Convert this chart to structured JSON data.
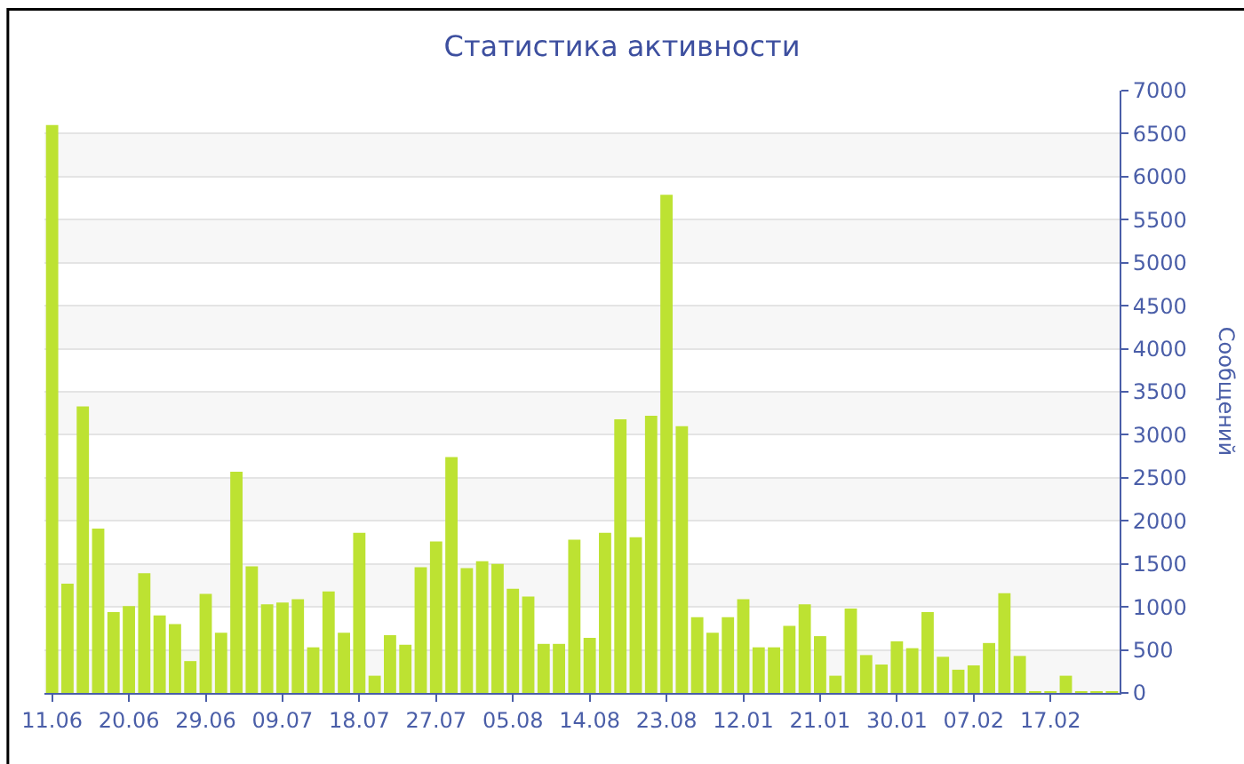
{
  "chart_data": {
    "type": "bar",
    "title": "Статистика активности",
    "ylabel": "Сообщений",
    "categories": [
      "11.06",
      null,
      null,
      null,
      null,
      "20.06",
      null,
      null,
      null,
      null,
      "29.06",
      null,
      null,
      null,
      null,
      "09.07",
      null,
      null,
      null,
      null,
      "18.07",
      null,
      null,
      null,
      null,
      "27.07",
      null,
      null,
      null,
      null,
      "05.08",
      null,
      null,
      null,
      null,
      "14.08",
      null,
      null,
      null,
      null,
      "23.08",
      null,
      null,
      null,
      null,
      "12.01",
      null,
      null,
      null,
      null,
      "21.01",
      null,
      null,
      null,
      null,
      "30.01",
      null,
      null,
      null,
      null,
      "07.02",
      null,
      null,
      null,
      null,
      "17.02",
      null,
      null,
      null,
      null
    ],
    "values": [
      6600,
      1270,
      3330,
      1910,
      940,
      1010,
      1390,
      900,
      800,
      370,
      1150,
      700,
      2570,
      1470,
      1030,
      1050,
      1090,
      530,
      1180,
      700,
      1860,
      200,
      670,
      560,
      1460,
      1760,
      2740,
      1450,
      1530,
      1500,
      1210,
      1120,
      570,
      570,
      1780,
      640,
      1860,
      3180,
      1810,
      3220,
      5790,
      3100,
      880,
      700,
      880,
      1090,
      530,
      530,
      780,
      1030,
      660,
      200,
      980,
      440,
      330,
      600,
      520,
      940,
      420,
      270,
      320,
      580,
      1160,
      430,
      20,
      20,
      200,
      20,
      20,
      20
    ],
    "color": "#bde232",
    "ylim": [
      0,
      7000
    ],
    "yticks": [
      0,
      500,
      1000,
      1500,
      2000,
      2500,
      3000,
      3500,
      4000,
      4500,
      5000,
      5500,
      6000,
      6500,
      7000
    ],
    "grid": "y"
  }
}
